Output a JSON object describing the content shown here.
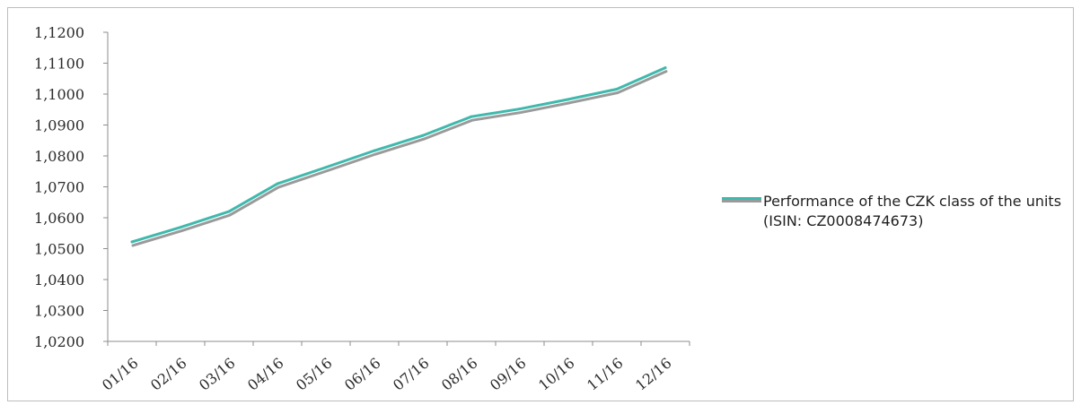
{
  "chart_data": {
    "type": "line",
    "categories": [
      "01/16",
      "02/16",
      "03/16",
      "04/16",
      "05/16",
      "06/16",
      "07/16",
      "08/16",
      "09/16",
      "10/16",
      "11/16",
      "12/16"
    ],
    "series": [
      {
        "name": "Performance of the CZK class of the units (ISIN: CZ0008474673)",
        "values": [
          1.0522,
          1.0569,
          1.062,
          1.071,
          1.0763,
          1.0817,
          1.0866,
          1.0927,
          1.0952,
          1.0983,
          1.1016,
          1.1085
        ],
        "color": "#3fb9ad",
        "shadow_color": "#9a9a9a"
      }
    ],
    "y_ticks": [
      "1,0200",
      "1,0300",
      "1,0400",
      "1,0500",
      "1,0600",
      "1,0700",
      "1,0800",
      "1,0900",
      "1,1000",
      "1,1100",
      "1,1200"
    ],
    "ylim": [
      1.02,
      1.12
    ],
    "title": "",
    "xlabel": "",
    "ylabel": "",
    "grid": false,
    "legend_position": "right"
  }
}
